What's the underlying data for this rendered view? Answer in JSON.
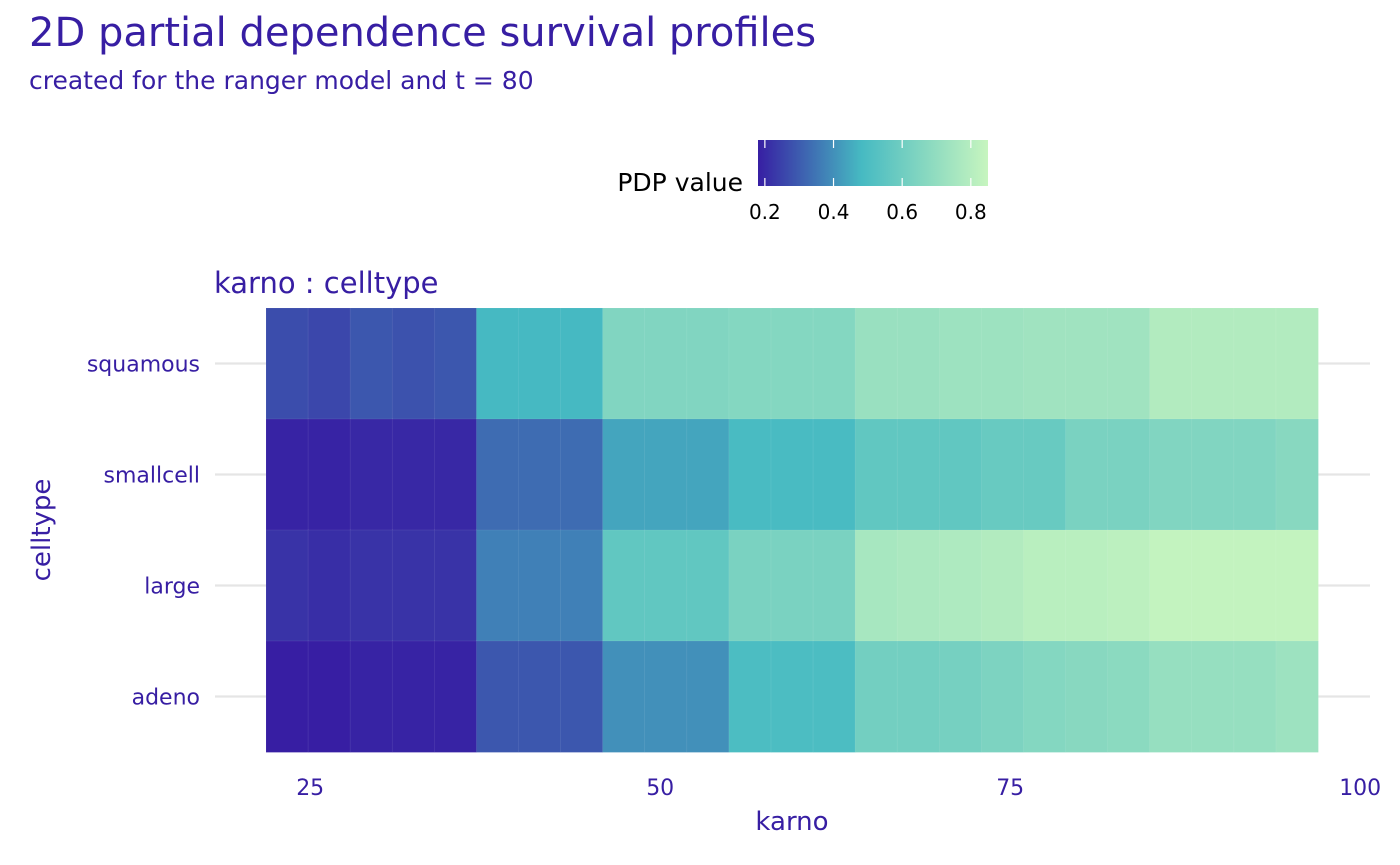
{
  "colors": {
    "text": "#371ea3",
    "grid": "#e5e5e5",
    "scale": [
      "#371ea3",
      "#46bac2",
      "#c7f5bf"
    ]
  },
  "chart_data": {
    "type": "heatmap",
    "title": "2D partial dependence survival profiles",
    "subtitle": "created for the ranger model and t = 80",
    "facet_label": "karno : celltype",
    "xlabel": "karno",
    "ylabel": "celltype",
    "legend": {
      "title": "PDP value",
      "position": "top",
      "ticks": [
        "0.2",
        "0.4",
        "0.6",
        "0.8"
      ],
      "range": [
        0.18,
        0.85
      ]
    },
    "x_ticks": [
      "25",
      "50",
      "75",
      "100"
    ],
    "x_tick_values": [
      25,
      50,
      75,
      100
    ],
    "xlim": [
      18.2,
      100.7
    ],
    "grid": true,
    "categories": [
      "adeno",
      "large",
      "smallcell",
      "squamous"
    ],
    "x": [
      20,
      23.3,
      26.7,
      30,
      33.3,
      36.7,
      40,
      43.3,
      46.7,
      50,
      53.3,
      56.7,
      60,
      63.3,
      66.7,
      70,
      73.3,
      76.7,
      80,
      83.3,
      86.7,
      90,
      93.3,
      96.7,
      99
    ],
    "series": [
      {
        "category": "squamous",
        "values": [
          0.27,
          0.26,
          0.29,
          0.28,
          0.29,
          0.48,
          0.48,
          0.48,
          0.65,
          0.65,
          0.65,
          0.66,
          0.66,
          0.66,
          0.72,
          0.72,
          0.73,
          0.73,
          0.74,
          0.74,
          0.74,
          0.79,
          0.79,
          0.79,
          0.79
        ]
      },
      {
        "category": "smallcell",
        "values": [
          0.19,
          0.19,
          0.2,
          0.2,
          0.2,
          0.33,
          0.33,
          0.33,
          0.44,
          0.44,
          0.44,
          0.49,
          0.49,
          0.49,
          0.56,
          0.56,
          0.56,
          0.58,
          0.58,
          0.63,
          0.63,
          0.65,
          0.65,
          0.65,
          0.67
        ]
      },
      {
        "category": "large",
        "values": [
          0.22,
          0.21,
          0.22,
          0.22,
          0.22,
          0.37,
          0.37,
          0.37,
          0.56,
          0.56,
          0.56,
          0.63,
          0.63,
          0.63,
          0.76,
          0.77,
          0.78,
          0.79,
          0.81,
          0.81,
          0.82,
          0.84,
          0.84,
          0.84,
          0.84
        ]
      },
      {
        "category": "adeno",
        "values": [
          0.18,
          0.18,
          0.19,
          0.19,
          0.19,
          0.29,
          0.29,
          0.29,
          0.4,
          0.4,
          0.4,
          0.5,
          0.5,
          0.5,
          0.61,
          0.61,
          0.62,
          0.64,
          0.66,
          0.67,
          0.68,
          0.71,
          0.71,
          0.71,
          0.73
        ]
      }
    ]
  }
}
